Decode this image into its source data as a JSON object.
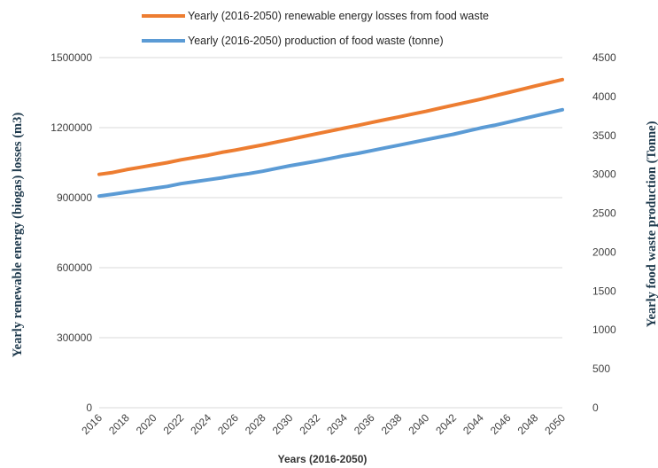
{
  "chart_data": {
    "type": "line",
    "title": "",
    "xlabel": "Years (2016-2050)",
    "ylabel_left": "Yearly renewable energy (biogas) losses (m3)",
    "ylabel_right": "Yearly food waste production (Tonne)",
    "x": [
      2016,
      2017,
      2018,
      2019,
      2020,
      2021,
      2022,
      2023,
      2024,
      2025,
      2026,
      2027,
      2028,
      2029,
      2030,
      2031,
      2032,
      2033,
      2034,
      2035,
      2036,
      2037,
      2038,
      2039,
      2040,
      2041,
      2042,
      2043,
      2044,
      2045,
      2046,
      2047,
      2048,
      2049,
      2050
    ],
    "x_tick_labels": [
      "2016",
      "2018",
      "2020",
      "2022",
      "2024",
      "2026",
      "2028",
      "2030",
      "2032",
      "2034",
      "2036",
      "2038",
      "2040",
      "2042",
      "2044",
      "2046",
      "2048",
      "2050"
    ],
    "y_left_lim": [
      0,
      1500000
    ],
    "y_left_ticks": [
      "0",
      "300000",
      "600000",
      "900000",
      "1200000",
      "1500000"
    ],
    "y_right_lim": [
      0,
      4500
    ],
    "y_right_ticks": [
      "0",
      "500",
      "1000",
      "1500",
      "2000",
      "2500",
      "3000",
      "3500",
      "4000",
      "4500"
    ],
    "grid": true,
    "legend_position": "top",
    "series": [
      {
        "name": "Yearly (2016-2050) renewable energy losses from food waste",
        "axis": "left",
        "color": "#ED7D31",
        "values": [
          1000000,
          1008000,
          1020000,
          1030000,
          1040000,
          1050000,
          1062000,
          1072000,
          1082000,
          1094000,
          1104000,
          1115000,
          1126000,
          1138000,
          1150000,
          1162000,
          1174000,
          1186000,
          1198000,
          1210000,
          1222000,
          1234000,
          1246000,
          1258000,
          1270000,
          1283000,
          1296000,
          1309000,
          1322000,
          1336000,
          1350000,
          1364000,
          1378000,
          1392000,
          1406000
        ]
      },
      {
        "name": "Yearly (2016-2050) production of food waste (tonne)",
        "axis": "right",
        "color": "#5B9BD5",
        "values": [
          2720,
          2745,
          2770,
          2795,
          2820,
          2845,
          2880,
          2905,
          2930,
          2955,
          2985,
          3010,
          3040,
          3075,
          3110,
          3140,
          3170,
          3205,
          3240,
          3270,
          3305,
          3340,
          3375,
          3410,
          3445,
          3480,
          3515,
          3555,
          3595,
          3630,
          3670,
          3710,
          3750,
          3790,
          3830
        ]
      }
    ]
  }
}
